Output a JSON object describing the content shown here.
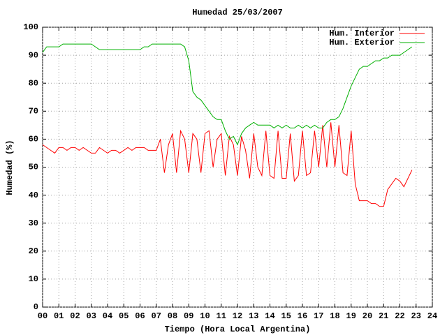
{
  "chart_data": {
    "type": "line",
    "title": "Humedad 25/03/2007",
    "xlabel": "Tiempo (Hora Local Argentina)",
    "ylabel": "Humedad (%)",
    "xlim": [
      0,
      24
    ],
    "ylim": [
      0,
      100
    ],
    "grid": true,
    "legend": "top-right",
    "xticks": [
      {
        "value": 0,
        "label": "00"
      },
      {
        "value": 1,
        "label": "01"
      },
      {
        "value": 2,
        "label": "02"
      },
      {
        "value": 3,
        "label": "03"
      },
      {
        "value": 4,
        "label": "04"
      },
      {
        "value": 5,
        "label": "05"
      },
      {
        "value": 6,
        "label": "06"
      },
      {
        "value": 7,
        "label": "07"
      },
      {
        "value": 8,
        "label": "08"
      },
      {
        "value": 9,
        "label": "09"
      },
      10,
      11,
      12,
      13,
      14,
      15,
      16,
      17,
      18,
      19,
      20,
      21,
      22,
      23,
      24
    ],
    "yticks": [
      0,
      10,
      20,
      30,
      40,
      50,
      60,
      70,
      80,
      90,
      100
    ],
    "x": [
      0,
      0.25,
      0.5,
      0.75,
      1,
      1.25,
      1.5,
      1.75,
      2,
      2.25,
      2.5,
      2.75,
      3,
      3.25,
      3.5,
      3.75,
      4,
      4.25,
      4.5,
      4.75,
      5,
      5.25,
      5.5,
      5.75,
      6,
      6.25,
      6.5,
      6.75,
      7,
      7.25,
      7.5,
      7.75,
      8,
      8.25,
      8.5,
      8.75,
      9,
      9.25,
      9.5,
      9.75,
      10,
      10.25,
      10.5,
      10.75,
      11,
      11.25,
      11.5,
      11.75,
      12,
      12.25,
      12.5,
      12.75,
      13,
      13.25,
      13.5,
      13.75,
      14,
      14.25,
      14.5,
      14.75,
      15,
      15.25,
      15.5,
      15.75,
      16,
      16.25,
      16.5,
      16.75,
      17,
      17.25,
      17.5,
      17.75,
      18,
      18.25,
      18.5,
      18.75,
      19,
      19.25,
      19.5,
      19.75,
      20,
      20.25,
      20.5,
      20.75,
      21,
      21.25,
      21.5,
      21.75,
      22,
      22.25,
      22.5,
      22.75
    ],
    "series": [
      {
        "name": "Hum. Interior",
        "color": "#ff0000",
        "values": [
          58,
          57,
          56,
          55,
          57,
          57,
          56,
          57,
          57,
          56,
          57,
          56,
          55,
          55,
          57,
          56,
          55,
          56,
          56,
          55,
          56,
          57,
          56,
          57,
          57,
          57,
          56,
          56,
          56,
          60,
          48,
          58,
          62,
          48,
          63,
          60,
          48,
          62,
          60,
          48,
          62,
          63,
          50,
          60,
          62,
          47,
          61,
          58,
          47,
          61,
          56,
          46,
          62,
          50,
          47,
          63,
          47,
          46,
          63,
          46,
          46,
          62,
          45,
          47,
          63,
          47,
          48,
          63,
          50,
          65,
          50,
          66,
          50,
          65,
          48,
          47,
          63,
          44,
          38,
          38,
          38,
          37,
          37,
          36,
          36,
          42,
          44,
          46,
          45,
          43,
          46,
          49
        ]
      },
      {
        "name": "Hum. Exterior",
        "color": "#00b000",
        "values": [
          91,
          93,
          93,
          93,
          93,
          94,
          94,
          94,
          94,
          94,
          94,
          94,
          94,
          93,
          92,
          92,
          92,
          92,
          92,
          92,
          92,
          92,
          92,
          92,
          92,
          93,
          93,
          94,
          94,
          94,
          94,
          94,
          94,
          94,
          94,
          93,
          88,
          77,
          75,
          74,
          72,
          70,
          68,
          67,
          67,
          63,
          60,
          61,
          58,
          62,
          64,
          65,
          66,
          65,
          65,
          65,
          65,
          64,
          65,
          64,
          65,
          64,
          64,
          65,
          64,
          65,
          64,
          65,
          64,
          64,
          66,
          67,
          67,
          68,
          71,
          75,
          79,
          82,
          85,
          86,
          86,
          87,
          88,
          88,
          89,
          89,
          90,
          90,
          90,
          91,
          92,
          93
        ]
      }
    ]
  }
}
